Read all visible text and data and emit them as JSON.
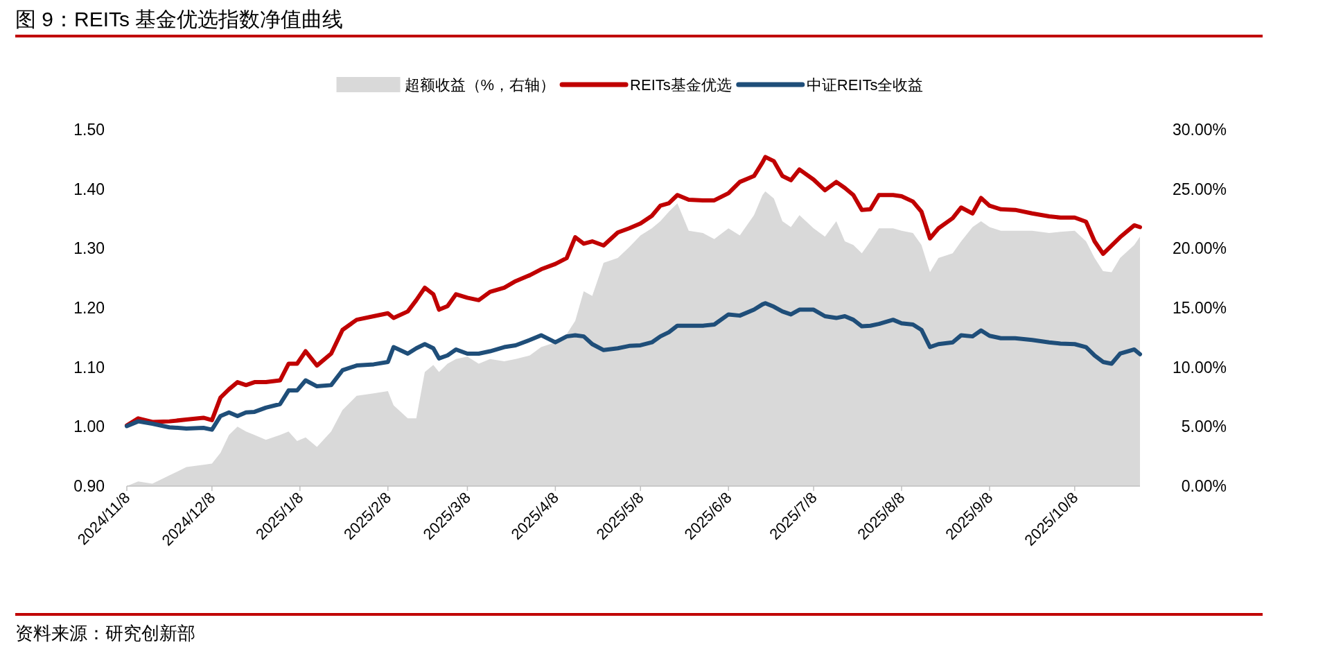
{
  "chart_data": {
    "type": "line",
    "title": "图 9：REITs 基金优选指数净值曲线",
    "annotations": [
      "资料来源：研究创新部"
    ],
    "x": [
      "2024-11-08",
      "2024-11-12",
      "2024-11-17",
      "2024-11-23",
      "2024-11-29",
      "2024-12-05",
      "2024-12-08",
      "2024-12-11",
      "2024-12-14",
      "2024-12-17",
      "2024-12-20",
      "2024-12-23",
      "2024-12-27",
      "2025-01-01",
      "2025-01-04",
      "2025-01-07",
      "2025-01-10",
      "2025-01-14",
      "2025-01-19",
      "2025-01-23",
      "2025-01-28",
      "2025-02-03",
      "2025-02-08",
      "2025-02-10",
      "2025-02-15",
      "2025-02-18",
      "2025-02-21",
      "2025-02-24",
      "2025-02-26",
      "2025-03-01",
      "2025-03-04",
      "2025-03-08",
      "2025-03-12",
      "2025-03-16",
      "2025-03-21",
      "2025-03-25",
      "2025-03-30",
      "2025-04-03",
      "2025-04-08",
      "2025-04-12",
      "2025-04-15",
      "2025-04-18",
      "2025-04-21",
      "2025-04-25",
      "2025-04-30",
      "2025-05-04",
      "2025-05-08",
      "2025-05-12",
      "2025-05-15",
      "2025-05-18",
      "2025-05-21",
      "2025-05-25",
      "2025-05-30",
      "2025-06-03",
      "2025-06-08",
      "2025-06-12",
      "2025-06-17",
      "2025-06-20",
      "2025-06-21",
      "2025-06-24",
      "2025-06-27",
      "2025-06-30",
      "2025-07-03",
      "2025-07-08",
      "2025-07-12",
      "2025-07-16",
      "2025-07-19",
      "2025-07-22",
      "2025-07-25",
      "2025-07-28",
      "2025-07-31",
      "2025-08-05",
      "2025-08-08",
      "2025-08-12",
      "2025-08-15",
      "2025-08-18",
      "2025-08-21",
      "2025-08-26",
      "2025-08-29",
      "2025-09-02",
      "2025-09-05",
      "2025-09-08",
      "2025-09-12",
      "2025-09-17",
      "2025-09-23",
      "2025-09-29",
      "2025-10-03",
      "2025-10-08",
      "2025-10-12",
      "2025-10-15",
      "2025-10-18",
      "2025-10-21",
      "2025-10-24",
      "2025-10-29",
      "2025-10-31"
    ],
    "series": [
      {
        "name": "超额收益（%，右轴）",
        "type": "area",
        "axis": "y2",
        "color": "#d9d9d9",
        "values": [
          0,
          0.4,
          0.2,
          0.9,
          1.6,
          1.8,
          1.9,
          2.8,
          4.3,
          5.0,
          4.6,
          4.3,
          3.9,
          4.3,
          4.6,
          3.8,
          4.1,
          3.3,
          4.6,
          6.4,
          7.6,
          7.8,
          8.0,
          6.8,
          5.7,
          5.7,
          9.6,
          10.2,
          9.6,
          10.3,
          10.7,
          10.9,
          10.3,
          10.7,
          10.5,
          10.7,
          11.0,
          11.7,
          12.1,
          12.8,
          13.9,
          16.4,
          16.0,
          18.8,
          19.2,
          20.1,
          21.1,
          21.7,
          22.3,
          23.1,
          23.8,
          21.5,
          21.3,
          20.8,
          21.7,
          21.1,
          22.8,
          24.5,
          24.8,
          24.2,
          22.3,
          21.8,
          22.8,
          21.7,
          21.0,
          22.3,
          20.6,
          20.3,
          19.6,
          20.6,
          21.7,
          21.7,
          21.5,
          21.3,
          20.3,
          18.0,
          19.2,
          19.6,
          20.6,
          21.8,
          22.3,
          21.8,
          21.5,
          21.5,
          21.5,
          21.3,
          21.4,
          21.5,
          20.6,
          19.2,
          18.1,
          18.0,
          19.2,
          20.3,
          21.0
        ]
      },
      {
        "name": "REITs基金优选",
        "color": "#c00000",
        "values": [
          1.002,
          1.014,
          1.008,
          1.009,
          1.012,
          1.015,
          1.011,
          1.049,
          1.063,
          1.075,
          1.07,
          1.075,
          1.075,
          1.078,
          1.106,
          1.106,
          1.127,
          1.103,
          1.123,
          1.163,
          1.18,
          1.186,
          1.191,
          1.183,
          1.194,
          1.213,
          1.234,
          1.223,
          1.197,
          1.203,
          1.223,
          1.217,
          1.213,
          1.227,
          1.234,
          1.245,
          1.255,
          1.265,
          1.274,
          1.284,
          1.319,
          1.308,
          1.312,
          1.305,
          1.327,
          1.334,
          1.342,
          1.355,
          1.372,
          1.376,
          1.39,
          1.382,
          1.381,
          1.381,
          1.393,
          1.412,
          1.422,
          1.445,
          1.454,
          1.447,
          1.422,
          1.415,
          1.433,
          1.416,
          1.398,
          1.412,
          1.402,
          1.39,
          1.365,
          1.366,
          1.39,
          1.39,
          1.388,
          1.379,
          1.362,
          1.317,
          1.334,
          1.351,
          1.369,
          1.359,
          1.385,
          1.372,
          1.366,
          1.365,
          1.359,
          1.354,
          1.352,
          1.352,
          1.345,
          1.312,
          1.291,
          1.305,
          1.319,
          1.339,
          1.336
        ]
      },
      {
        "name": "中证REITs全收益",
        "color": "#1f4e79",
        "values": [
          1.001,
          1.009,
          1.005,
          0.999,
          0.997,
          0.998,
          0.995,
          1.018,
          1.024,
          1.018,
          1.024,
          1.025,
          1.032,
          1.038,
          1.061,
          1.061,
          1.078,
          1.068,
          1.07,
          1.095,
          1.103,
          1.105,
          1.109,
          1.134,
          1.123,
          1.132,
          1.139,
          1.132,
          1.115,
          1.12,
          1.13,
          1.123,
          1.123,
          1.127,
          1.134,
          1.137,
          1.146,
          1.154,
          1.142,
          1.152,
          1.154,
          1.152,
          1.139,
          1.129,
          1.132,
          1.136,
          1.137,
          1.142,
          1.152,
          1.159,
          1.17,
          1.17,
          1.17,
          1.172,
          1.189,
          1.187,
          1.197,
          1.206,
          1.208,
          1.202,
          1.194,
          1.189,
          1.197,
          1.197,
          1.186,
          1.183,
          1.186,
          1.18,
          1.169,
          1.17,
          1.173,
          1.18,
          1.174,
          1.172,
          1.163,
          1.134,
          1.139,
          1.142,
          1.154,
          1.152,
          1.162,
          1.153,
          1.149,
          1.149,
          1.146,
          1.142,
          1.14,
          1.139,
          1.134,
          1.12,
          1.109,
          1.106,
          1.123,
          1.13,
          1.122
        ]
      }
    ],
    "xlim": [
      "2024-11-08",
      "2025-10-31"
    ],
    "xticks": [
      {
        "value": "2024-11-08",
        "label": "2024/11/8"
      },
      {
        "value": "2024-12-08",
        "label": "2024/12/8"
      },
      {
        "value": "2025-01-08",
        "label": "2025/1/8"
      },
      {
        "value": "2025-02-08",
        "label": "2025/2/8"
      },
      {
        "value": "2025-03-08",
        "label": "2025/3/8"
      },
      {
        "value": "2025-04-08",
        "label": "2025/4/8"
      },
      {
        "value": "2025-05-08",
        "label": "2025/5/8"
      },
      {
        "value": "2025-06-08",
        "label": "2025/6/8"
      },
      {
        "value": "2025-07-08",
        "label": "2025/7/8"
      },
      {
        "value": "2025-08-08",
        "label": "2025/8/8"
      },
      {
        "value": "2025-09-08",
        "label": "2025/9/8"
      },
      {
        "value": "2025-10-08",
        "label": "2025/10/8"
      }
    ],
    "ylim": [
      0.9,
      1.5
    ],
    "yticks": [
      {
        "value": 0.9,
        "label": "0.90"
      },
      {
        "value": 1.0,
        "label": "1.00"
      },
      {
        "value": 1.1,
        "label": "1.10"
      },
      {
        "value": 1.2,
        "label": "1.20"
      },
      {
        "value": 1.3,
        "label": "1.30"
      },
      {
        "value": 1.4,
        "label": "1.40"
      },
      {
        "value": 1.5,
        "label": "1.50"
      }
    ],
    "y2lim": [
      0,
      30
    ],
    "y2ticks": [
      {
        "value": 0,
        "label": "0.00%"
      },
      {
        "value": 5,
        "label": "5.00%"
      },
      {
        "value": 10,
        "label": "10.00%"
      },
      {
        "value": 15,
        "label": "15.00%"
      },
      {
        "value": 20,
        "label": "20.00%"
      },
      {
        "value": 25,
        "label": "25.00%"
      },
      {
        "value": 30,
        "label": "30.00%"
      }
    ],
    "grid": false,
    "legend": "top",
    "marker": "none",
    "line_style": "solid"
  }
}
